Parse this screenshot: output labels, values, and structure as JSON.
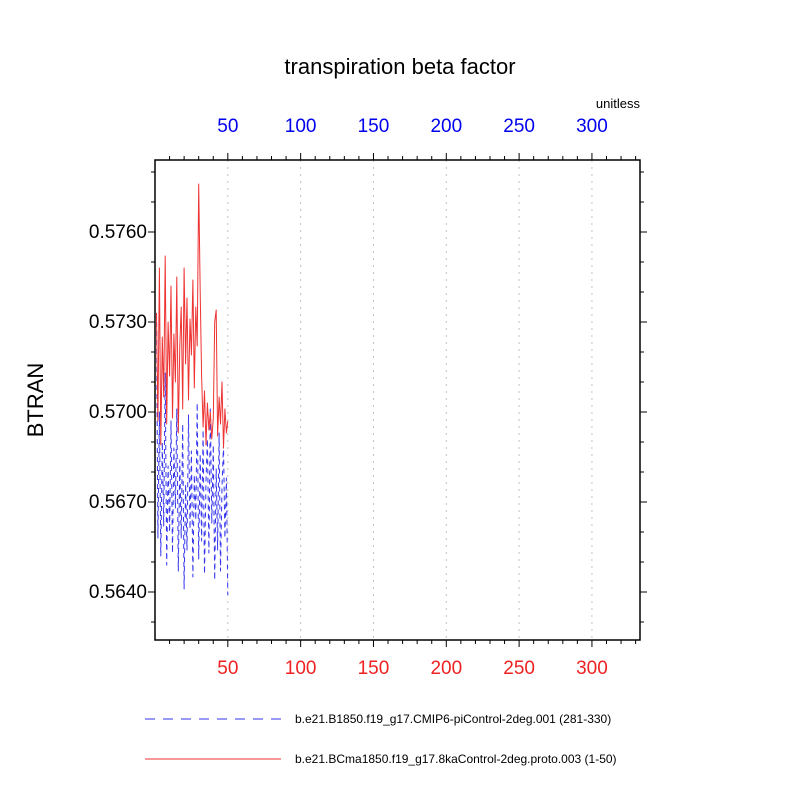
{
  "chart_data": {
    "type": "line",
    "title": "transpiration beta factor",
    "units": "unitless",
    "ylabel": "BTRAN",
    "xlabel": "",
    "x_ticks": [
      50,
      100,
      150,
      200,
      250,
      300
    ],
    "y_ticks": [
      0.564,
      0.567,
      0.57,
      0.573,
      0.576
    ],
    "xlim": [
      0,
      333
    ],
    "ylim": [
      0.5624,
      0.5784
    ],
    "x_minor_step": 10,
    "y_minor_step": 0.001,
    "grid": "vertical-dashed",
    "grid_color": "#c0c0c0",
    "frame_color": "#000000",
    "top_label_color": "#0000ee",
    "bottom_label_color": "#ee2222",
    "legend_position": "bottom",
    "series": [
      {
        "name": "b.e21.B1850.f19_g17.CMIP6-piControl-2deg.001 (281-330)",
        "color": "#3333ee",
        "line_style": "dashed",
        "x_start": 1,
        "x_step": 1,
        "values": [
          0.5733,
          0.5658,
          0.57,
          0.5652,
          0.569,
          0.5662,
          0.5713,
          0.5649,
          0.5682,
          0.566,
          0.5697,
          0.5653,
          0.5688,
          0.5668,
          0.5701,
          0.5647,
          0.5684,
          0.5658,
          0.5696,
          0.5641,
          0.5676,
          0.5654,
          0.5699,
          0.5661,
          0.5687,
          0.5645,
          0.5679,
          0.5664,
          0.5703,
          0.5651,
          0.5686,
          0.5657,
          0.5694,
          0.5646,
          0.5677,
          0.5691,
          0.5653,
          0.5701,
          0.5663,
          0.5689,
          0.5644,
          0.5681,
          0.5654,
          0.5693,
          0.5647,
          0.5675,
          0.5689,
          0.5658,
          0.5678,
          0.5639
        ]
      },
      {
        "name": "b.e21.BCma1850.f19_g17.8kaControl-2deg.proto.003 (1-50)",
        "color": "#ee3333",
        "line_style": "solid",
        "x_start": 1,
        "x_step": 1,
        "values": [
          0.5733,
          0.5697,
          0.5748,
          0.5689,
          0.5725,
          0.5705,
          0.5752,
          0.5696,
          0.573,
          0.5712,
          0.5742,
          0.5698,
          0.5726,
          0.571,
          0.5745,
          0.5693,
          0.5722,
          0.5735,
          0.5701,
          0.5748,
          0.5716,
          0.5738,
          0.5704,
          0.5731,
          0.5719,
          0.5744,
          0.5708,
          0.5735,
          0.5722,
          0.5776,
          0.574,
          0.5712,
          0.5695,
          0.5707,
          0.5689,
          0.5703,
          0.5694,
          0.57,
          0.5691,
          0.5698,
          0.573,
          0.5734,
          0.5692,
          0.5705,
          0.5696,
          0.571,
          0.5688,
          0.5701,
          0.5693,
          0.5697
        ]
      }
    ]
  }
}
